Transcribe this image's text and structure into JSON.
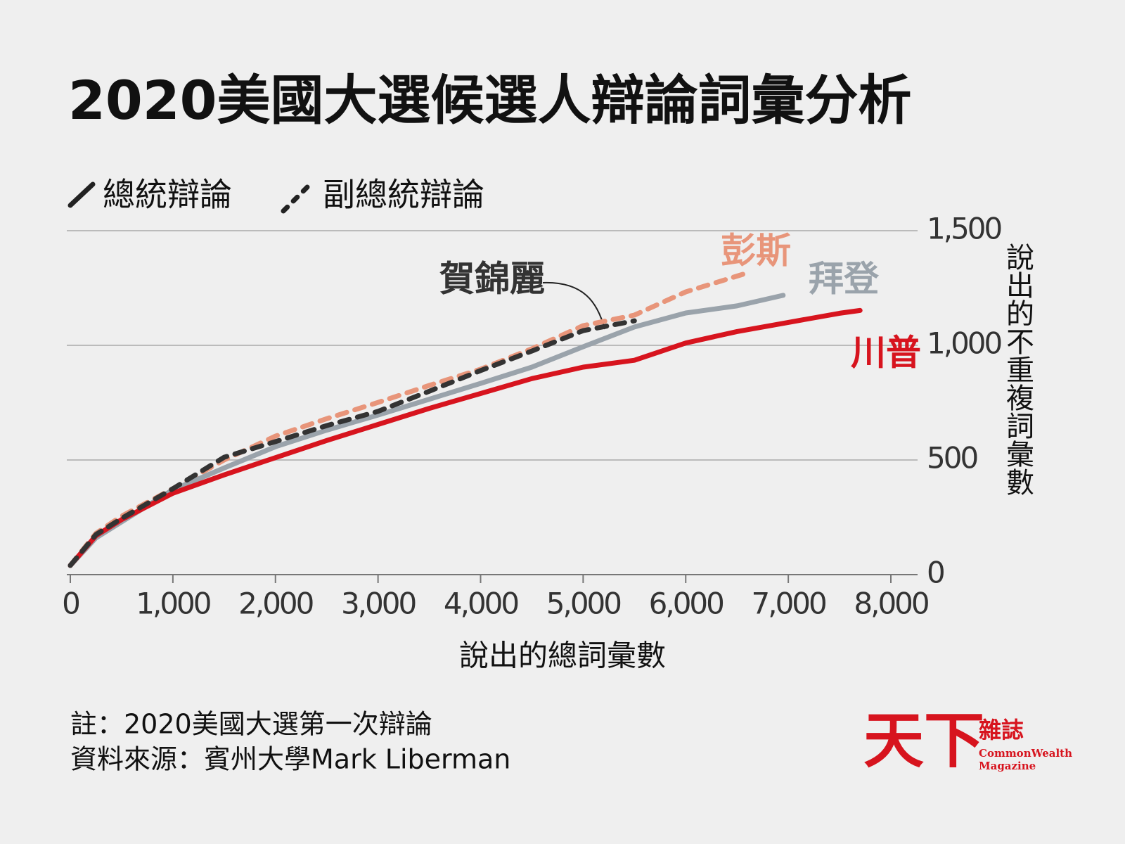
{
  "chart_data": {
    "type": "line",
    "title": "2020美國大選候選人辯論詞彙分析",
    "legend": [
      {
        "label": "總統辯論",
        "style": "solid"
      },
      {
        "label": "副總統辯論",
        "style": "dashed"
      }
    ],
    "xlabel": "說出的總詞彙數",
    "ylabel": "說出的不重複詞彙數",
    "xlim": [
      0,
      8000
    ],
    "ylim": [
      0,
      1500
    ],
    "xticks": [
      0,
      {
        "value": 1000,
        "label": "1,000"
      },
      {
        "value": 2000,
        "label": "2,000"
      },
      {
        "value": 3000,
        "label": "3,000"
      },
      {
        "value": 4000,
        "label": "4,000"
      },
      {
        "value": 5000,
        "label": "5,000"
      },
      {
        "value": 6000,
        "label": "6,000"
      },
      {
        "value": 7000,
        "label": "7,000"
      },
      {
        "value": 8000,
        "label": "8,000"
      }
    ],
    "yticks": [
      0,
      500,
      {
        "value": 1000,
        "label": "1,000"
      },
      {
        "value": 1500,
        "label": "1,500"
      }
    ],
    "grid": true,
    "series": [
      {
        "name": "彭斯",
        "color": "#e8957a",
        "style": "dashed",
        "x": [
          0,
          250,
          500,
          1000,
          1500,
          2000,
          2500,
          3000,
          3500,
          4000,
          4500,
          5000,
          5500,
          6000,
          6560
        ],
        "values": [
          40,
          180,
          255,
          375,
          500,
          604,
          680,
          751,
          825,
          896,
          985,
          1086,
          1132,
          1233,
          1310
        ]
      },
      {
        "name": "拜登",
        "color": "#9aa3ab",
        "style": "solid",
        "x": [
          0,
          250,
          500,
          1000,
          1500,
          2000,
          2500,
          3000,
          3500,
          4000,
          4500,
          5000,
          5500,
          6000,
          6500,
          6950
        ],
        "values": [
          40,
          160,
          230,
          370,
          465,
          558,
          630,
          696,
          765,
          834,
          905,
          994,
          1080,
          1141,
          1172,
          1218
        ]
      },
      {
        "name": "賀錦麗",
        "color": "#333333",
        "style": "dashed",
        "x": [
          0,
          250,
          500,
          1000,
          1500,
          2000,
          2500,
          3000,
          3500,
          4000,
          4500,
          5000,
          5500
        ],
        "values": [
          40,
          175,
          245,
          375,
          512,
          580,
          650,
          712,
          800,
          890,
          975,
          1064,
          1107
        ]
      },
      {
        "name": "川普",
        "color": "#d7141e",
        "style": "solid",
        "x": [
          0,
          250,
          500,
          1000,
          1500,
          2000,
          2500,
          3000,
          3500,
          4000,
          4500,
          5000,
          5500,
          6000,
          6500,
          7000,
          7500,
          7700
        ],
        "values": [
          40,
          170,
          240,
          355,
          435,
          510,
          585,
          655,
          725,
          790,
          855,
          905,
          935,
          1010,
          1060,
          1100,
          1140,
          1152
        ]
      }
    ],
    "notes": [
      "註：2020美國大選第一次辯論",
      "資料來源：賓州大學Mark Liberman"
    ],
    "logo": {
      "main": "天下",
      "side": "雜誌",
      "en1": "CommonWealth",
      "en2": "Magazine"
    }
  }
}
